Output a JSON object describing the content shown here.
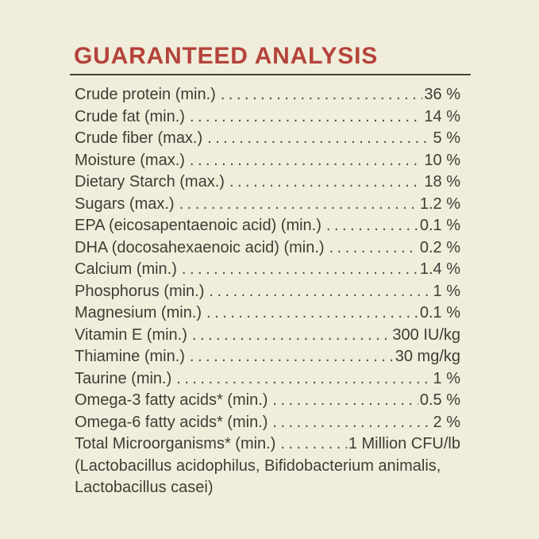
{
  "panel": {
    "title": "GUARANTEED ANALYSIS",
    "colors": {
      "background": "#f0eedb",
      "title": "#b5433c",
      "rule": "#45423a",
      "text": "#3f3c35"
    },
    "rows": [
      {
        "label": "Crude protein (min.)",
        "value": "36 %"
      },
      {
        "label": "Crude fat (min.)",
        "value": "14 %"
      },
      {
        "label": "Crude fiber (max.)",
        "value": "5 %"
      },
      {
        "label": "Moisture (max.)",
        "value": "10 %"
      },
      {
        "label": "Dietary Starch (max.)",
        "value": "18 %"
      },
      {
        "label": "Sugars (max.)",
        "value": "1.2 %"
      },
      {
        "label": "EPA (eicosapentaenoic acid) (min.)",
        "value": "0.1 %"
      },
      {
        "label": "DHA (docosahexaenoic acid) (min.)",
        "value": "0.2 %"
      },
      {
        "label": "Calcium (min.)",
        "value": "1.4 %"
      },
      {
        "label": "Phosphorus (min.)",
        "value": "1 %"
      },
      {
        "label": "Magnesium (min.)",
        "value": "0.1 %"
      },
      {
        "label": "Vitamin E (min.)",
        "value": "300 IU/kg"
      },
      {
        "label": "Thiamine (min.)",
        "value": "30 mg/kg"
      },
      {
        "label": "Taurine (min.)",
        "value": "1 %"
      },
      {
        "label": "Omega-3 fatty acids* (min.)",
        "value": "0.5 %"
      },
      {
        "label": "Omega-6 fatty acids* (min.)",
        "value": "2 %"
      },
      {
        "label": "Total Microorganisms* (min.)",
        "value": "1 Million CFU/lb"
      }
    ],
    "footnote": "(Lactobacillus acidophilus, Bifidobacterium animalis, Lactobacillus casei)"
  }
}
